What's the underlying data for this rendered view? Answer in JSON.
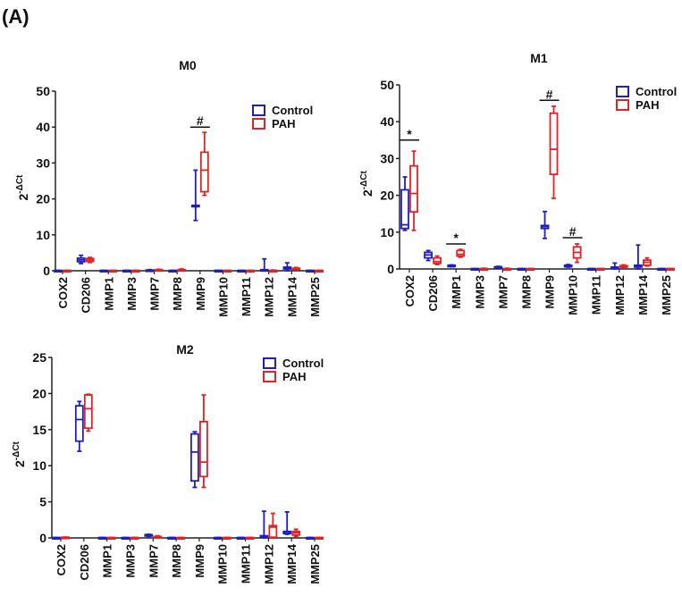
{
  "figure_label": "(A)",
  "colors": {
    "Control": "#1f1fc0",
    "PAH": "#e02424",
    "axis": "#222222"
  },
  "chart_data": [
    {
      "type": "box",
      "title": "M0",
      "ylabel_base": "2",
      "ylabel_exp": "-ΔCt",
      "ylim": [
        0,
        50
      ],
      "yticks": [
        0,
        10,
        20,
        30,
        40,
        50
      ],
      "legend": "top-right",
      "categories": [
        "COX2",
        "CD206",
        "MMP1",
        "MMP3",
        "MMP7",
        "MMP8",
        "MMP9",
        "MMP10",
        "MMP11",
        "MMP12",
        "MMP14",
        "MMP25"
      ],
      "series": [
        {
          "name": "Control",
          "boxes": [
            [
              0,
              0,
              0.05,
              0.1,
              0.1
            ],
            [
              2,
              2.5,
              3,
              3.5,
              4.3
            ],
            [
              0,
              0,
              0.05,
              0.1,
              0.1
            ],
            [
              0,
              0,
              0.05,
              0.1,
              0.1
            ],
            [
              0,
              0,
              0.1,
              0.2,
              0.3
            ],
            [
              0,
              0,
              0.05,
              0.1,
              0.1
            ],
            [
              14,
              18,
              18,
              18.2,
              28
            ],
            [
              0,
              0,
              0.05,
              0.1,
              0.1
            ],
            [
              0,
              0,
              0.05,
              0.1,
              0.1
            ],
            [
              0,
              0,
              0.1,
              0.3,
              3.3
            ],
            [
              0,
              0.5,
              0.8,
              1,
              2.2
            ],
            [
              0,
              0,
              0.05,
              0.1,
              0.1
            ]
          ]
        },
        {
          "name": "PAH",
          "boxes": [
            [
              0,
              0,
              0.05,
              0.1,
              0.1
            ],
            [
              2.3,
              2.6,
              3,
              3.4,
              3.7
            ],
            [
              0,
              0,
              0.05,
              0.1,
              0.1
            ],
            [
              0,
              0,
              0.05,
              0.1,
              0.1
            ],
            [
              0,
              0,
              0.2,
              0.3,
              0.4
            ],
            [
              0,
              0,
              0.2,
              0.3,
              0.5
            ],
            [
              21,
              22,
              28,
              33,
              38.5
            ],
            [
              0,
              0,
              0.05,
              0.1,
              0.1
            ],
            [
              0,
              0,
              0.05,
              0.1,
              0.1
            ],
            [
              0,
              0,
              0.05,
              0.1,
              0.2
            ],
            [
              0.3,
              0.4,
              0.6,
              0.7,
              0.9
            ],
            [
              0,
              0,
              0.05,
              0.1,
              0.1
            ]
          ]
        }
      ],
      "annotations": [
        {
          "category": "MMP9",
          "text": "#",
          "y": 40
        }
      ]
    },
    {
      "type": "box",
      "title": "M1",
      "ylabel_base": "2",
      "ylabel_exp": "-ΔCt",
      "ylim": [
        0,
        50
      ],
      "yticks": [
        0,
        10,
        20,
        30,
        40,
        50
      ],
      "legend": "top-right",
      "categories": [
        "COX2",
        "CD206",
        "MMP1",
        "MMP3",
        "MMP7",
        "MMP8",
        "MMP9",
        "MMP10",
        "MMP11",
        "MMP12",
        "MMP14",
        "MMP25"
      ],
      "series": [
        {
          "name": "Control",
          "boxes": [
            [
              10.5,
              11,
              12,
              21.5,
              25
            ],
            [
              2.3,
              3,
              3.8,
              4.5,
              5
            ],
            [
              0.6,
              0.7,
              0.9,
              1,
              1.1
            ],
            [
              0,
              0,
              0.05,
              0.1,
              0.1
            ],
            [
              0.2,
              0.3,
              0.5,
              0.6,
              0.7
            ],
            [
              0,
              0,
              0.05,
              0.1,
              0.1
            ],
            [
              8.3,
              11,
              11.5,
              11.8,
              15.6
            ],
            [
              0.5,
              0.6,
              0.9,
              1,
              1.2
            ],
            [
              0,
              0,
              0.05,
              0.1,
              0.1
            ],
            [
              0,
              0.1,
              0.3,
              0.5,
              1.6
            ],
            [
              0,
              0.5,
              0.9,
              1,
              6.5
            ],
            [
              0,
              0,
              0.05,
              0.1,
              0.1
            ]
          ]
        },
        {
          "name": "PAH",
          "boxes": [
            [
              10.5,
              15.5,
              20.5,
              28,
              32
            ],
            [
              1.2,
              1.5,
              2,
              3,
              3.5
            ],
            [
              3.2,
              3.5,
              4,
              5,
              5.3
            ],
            [
              0,
              0,
              0.05,
              0.1,
              0.2
            ],
            [
              0,
              0,
              0.05,
              0.1,
              0.2
            ],
            [
              0,
              0,
              0.05,
              0.1,
              0.1
            ],
            [
              19.2,
              25.7,
              32.5,
              42.3,
              44.2
            ],
            [
              1.8,
              3,
              4.5,
              6,
              6.8
            ],
            [
              0,
              0,
              0.05,
              0.1,
              0.1
            ],
            [
              0.4,
              0.5,
              0.7,
              0.9,
              1.1
            ],
            [
              0.8,
              1,
              1.8,
              2.4,
              3
            ],
            [
              0,
              0,
              0.05,
              0.1,
              0.1
            ]
          ]
        }
      ],
      "annotations": [
        {
          "category": "COX2",
          "text": "*",
          "y": 35
        },
        {
          "category": "MMP1",
          "text": "*",
          "y": 6.8
        },
        {
          "category": "MMP9",
          "text": "#",
          "y": 45.8
        },
        {
          "category": "MMP10",
          "text": "#",
          "y": 8.5
        }
      ]
    },
    {
      "type": "box",
      "title": "M2",
      "ylabel_base": "2",
      "ylabel_exp": "-ΔCt",
      "ylim": [
        0,
        25
      ],
      "yticks": [
        0,
        5,
        10,
        15,
        20,
        25
      ],
      "legend": "top-right",
      "categories": [
        "COX2",
        "CD206",
        "MMP1",
        "MMP3",
        "MMP7",
        "MMP8",
        "MMP9",
        "MMP10",
        "MMP11",
        "MMP12",
        "MMP14",
        "MMP25"
      ],
      "series": [
        {
          "name": "Control",
          "boxes": [
            [
              0,
              0,
              0.03,
              0.05,
              0.05
            ],
            [
              12,
              13.4,
              16.4,
              18.3,
              18.9
            ],
            [
              0,
              0,
              0.03,
              0.05,
              0.05
            ],
            [
              0,
              0,
              0.03,
              0.05,
              0.05
            ],
            [
              0.2,
              0.3,
              0.4,
              0.45,
              0.5
            ],
            [
              0,
              0,
              0.03,
              0.05,
              0.05
            ],
            [
              7,
              7.9,
              11.9,
              14.4,
              14.7
            ],
            [
              0,
              0,
              0.03,
              0.05,
              0.05
            ],
            [
              0,
              0,
              0.03,
              0.05,
              0.05
            ],
            [
              0,
              0.1,
              0.2,
              0.3,
              3.7
            ],
            [
              0.5,
              0.6,
              0.8,
              0.9,
              3.6
            ],
            [
              0,
              0,
              0.03,
              0.05,
              0.05
            ]
          ]
        },
        {
          "name": "PAH",
          "boxes": [
            [
              0,
              0,
              0.05,
              0.1,
              0.1
            ],
            [
              14.8,
              15.2,
              17.9,
              19.8,
              19.9
            ],
            [
              0,
              0,
              0.03,
              0.05,
              0.05
            ],
            [
              0,
              0,
              0.03,
              0.05,
              0.05
            ],
            [
              0,
              0.05,
              0.1,
              0.2,
              0.3
            ],
            [
              0,
              0,
              0.03,
              0.05,
              0.05
            ],
            [
              7,
              8.5,
              10.5,
              16.1,
              19.8
            ],
            [
              0,
              0,
              0.03,
              0.05,
              0.05
            ],
            [
              0,
              0,
              0.03,
              0.05,
              0.05
            ],
            [
              0,
              0.1,
              1.5,
              1.7,
              3.4
            ],
            [
              0.2,
              0.4,
              0.7,
              0.9,
              1.2
            ],
            [
              0,
              0,
              0.03,
              0.05,
              0.05
            ]
          ]
        }
      ],
      "annotations": []
    }
  ]
}
